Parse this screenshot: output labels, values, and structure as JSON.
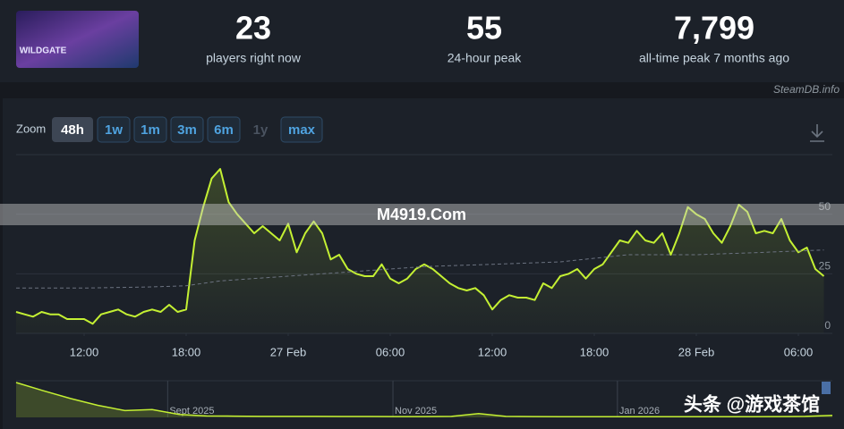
{
  "header": {
    "game_logo": "WILDGATE",
    "stats": [
      {
        "number": 23,
        "caption": "players right now"
      },
      {
        "number": 55,
        "caption": "24-hour peak"
      },
      {
        "number": {
          "value": 7799,
          "label": "7,799"
        },
        "caption": "all-time peak 7 months ago"
      }
    ]
  },
  "credit": "SteamDB.info",
  "zoom": {
    "label": "Zoom",
    "options": [
      "48h",
      "1w",
      "1m",
      "3m",
      "6m",
      "1y",
      "max"
    ],
    "active": "48h",
    "disabled": [
      "1y"
    ]
  },
  "watermarks": [
    "M4919.Com",
    "头条 @游戏茶馆"
  ],
  "chart_data": [
    {
      "type": "line",
      "x": [
        8,
        8.5,
        9,
        9.5,
        10,
        10.5,
        11,
        11.5,
        12,
        12.5,
        13,
        13.5,
        14,
        14.5,
        15,
        15.5,
        16,
        16.5,
        17,
        17.5,
        18,
        18.5,
        19,
        19.5,
        20,
        20.5,
        21,
        21.5,
        22,
        22.5,
        23,
        23.5,
        24,
        24.5,
        25,
        25.5,
        26,
        26.5,
        27,
        27.5,
        28,
        28.5,
        29,
        29.5,
        30,
        30.5,
        31,
        31.5,
        32,
        32.5,
        33,
        33.5,
        34,
        34.5,
        35,
        35.5,
        36,
        36.5,
        37,
        37.5,
        38,
        38.5,
        39,
        39.5,
        40,
        40.5,
        41,
        41.5,
        42,
        42.5,
        43,
        43.5,
        44,
        44.5,
        45,
        45.5,
        46,
        46.5,
        47,
        47.5,
        48,
        48.5,
        49,
        49.5,
        50,
        50.5,
        51,
        51.5,
        52,
        52.5,
        53,
        53.5,
        54,
        54.5,
        55,
        55.5
      ],
      "xlim": [
        8,
        56
      ],
      "xticks": [
        {
          "value": 12,
          "label": "12:00"
        },
        {
          "value": 18,
          "label": "18:00"
        },
        {
          "value": 24,
          "label": "27 Feb"
        },
        {
          "value": 30,
          "label": "06:00"
        },
        {
          "value": 36,
          "label": "12:00"
        },
        {
          "value": 42,
          "label": "18:00"
        },
        {
          "value": 48,
          "label": "28 Feb"
        },
        {
          "value": 54,
          "label": "06:00"
        }
      ],
      "ylim": [
        0,
        75
      ],
      "yticks": [
        0,
        25,
        50
      ],
      "grid": true,
      "series": [
        {
          "color": "#c4f033",
          "values": [
            9,
            8,
            7,
            9,
            8,
            8,
            6,
            6,
            6,
            4,
            8,
            9,
            10,
            8,
            7,
            9,
            10,
            9,
            12,
            9,
            10,
            39,
            53,
            65,
            69,
            55,
            50,
            46,
            42,
            45,
            42,
            39,
            46,
            34,
            42,
            47,
            42,
            31,
            33,
            27,
            25,
            24,
            24,
            29,
            23,
            21,
            23,
            27,
            29,
            27,
            24,
            21,
            19,
            18,
            19,
            16,
            10,
            14,
            16,
            15,
            15,
            14,
            21,
            19,
            24,
            25,
            27,
            23,
            27,
            29,
            34,
            39,
            38,
            43,
            39,
            38,
            42,
            33,
            42,
            53,
            50,
            48,
            42,
            38,
            45,
            54,
            51,
            42,
            43,
            42,
            48,
            39,
            34,
            36,
            27,
            24
          ]
        },
        {
          "color": "#6b7280",
          "dashed": true,
          "x": [
            8,
            12,
            16,
            18,
            20,
            24,
            28,
            32,
            36,
            40,
            44,
            48,
            52,
            55.5
          ],
          "values": [
            19,
            19,
            19.5,
            20,
            22,
            24,
            26,
            28,
            29,
            30,
            33,
            33,
            34,
            35
          ]
        }
      ]
    },
    {
      "type": "area",
      "x": [
        0,
        1,
        2,
        3,
        4,
        5,
        6,
        7,
        8,
        9,
        10,
        11,
        12,
        13,
        14,
        15,
        16,
        17,
        18,
        19,
        20,
        21,
        22,
        23,
        24,
        25,
        26,
        27,
        28,
        29,
        30
      ],
      "xlim": [
        0,
        30
      ],
      "xticks": [
        {
          "value": 5.57,
          "label": "Sept 2025"
        },
        {
          "value": 13.85,
          "label": "Nov 2025"
        },
        {
          "value": 22.1,
          "label": "Jan 2026"
        }
      ],
      "color": "#c4f033",
      "values": [
        7200,
        5500,
        3900,
        2500,
        1400,
        1600,
        600,
        300,
        250,
        200,
        200,
        200,
        180,
        180,
        160,
        160,
        200,
        800,
        200,
        160,
        150,
        150,
        150,
        150,
        150,
        150,
        150,
        150,
        160,
        200,
        400
      ]
    }
  ]
}
